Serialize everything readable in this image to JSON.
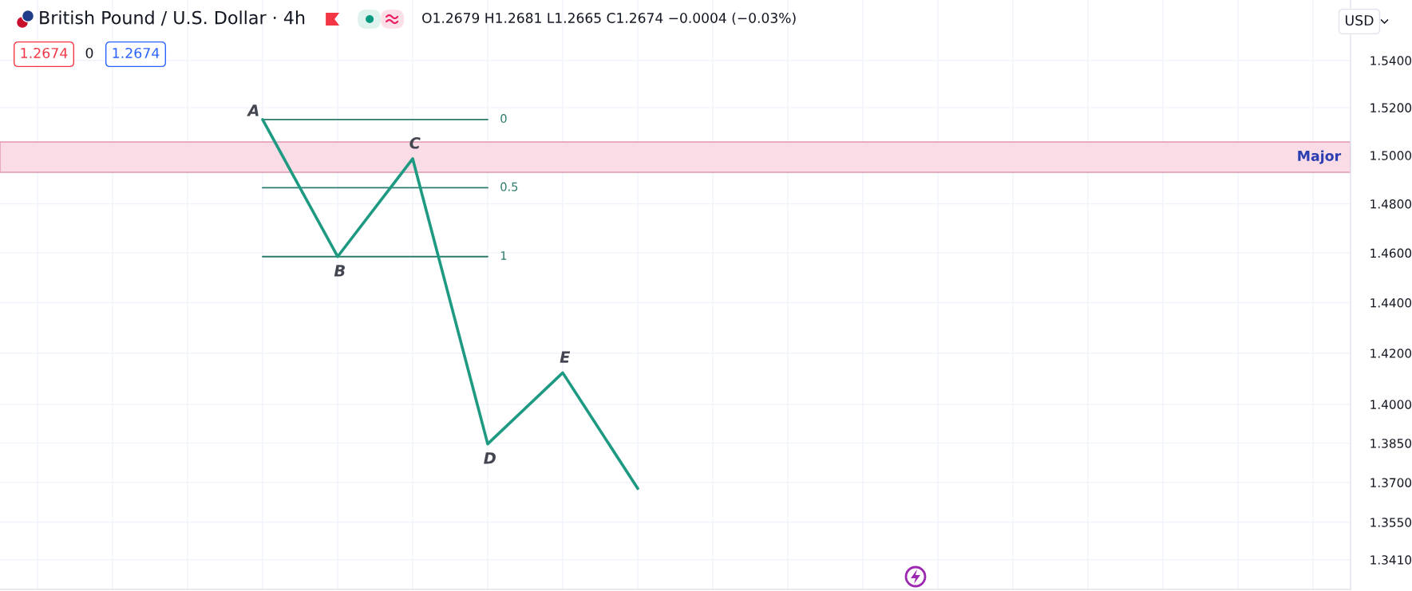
{
  "chart_data": {
    "type": "line",
    "title": "British Pound / U.S. Dollar · 4h",
    "subtitle": "O1.2679 H1.2681 L1.2665 C1.2674 −0.0004 (−0.03%)",
    "annotations": [
      "1.2674",
      "0",
      "1.2674",
      "USD",
      "A",
      "B",
      "C",
      "D",
      "E"
    ],
    "categories": [
      null,
      null,
      null,
      null,
      null,
      null,
      null,
      null,
      null,
      null,
      null,
      null,
      null,
      null,
      null,
      null,
      null,
      null
    ],
    "series": [
      {
        "color": "#1f9a82",
        "values": [
          null,
          null,
          null,
          1.515,
          1.4585,
          1.4986,
          1.3847,
          1.4123,
          1.3677,
          null,
          null,
          null,
          null,
          null,
          null,
          null,
          null,
          null
        ]
      },
      {
        "name": "0",
        "color": "#2b7a6b",
        "values": [
          null,
          null,
          null,
          1.515,
          1.515,
          1.515,
          1.515,
          null,
          null,
          null,
          null,
          null,
          null,
          null,
          null,
          null,
          null,
          null
        ]
      },
      {
        "name": "0.5",
        "color": "#2b7a6b",
        "values": [
          null,
          null,
          null,
          1.4866,
          1.4866,
          1.4866,
          1.4866,
          null,
          null,
          null,
          null,
          null,
          null,
          null,
          null,
          null,
          null,
          null
        ]
      },
      {
        "name": "1",
        "color": "#2b7a6b",
        "values": [
          null,
          null,
          null,
          1.4585,
          1.4585,
          1.4585,
          1.4585,
          null,
          null,
          null,
          null,
          null,
          null,
          null,
          null,
          null,
          null,
          null
        ]
      }
    ],
    "bands": [
      {
        "axis": "y",
        "from": 1.493,
        "to": 1.5056,
        "label": "Major",
        "color": "#f9dce5"
      }
    ],
    "ylim": [
      1.33,
      1.566
    ],
    "yticks": [
      {
        "value": 1.54,
        "label": "1.5400"
      },
      {
        "value": 1.52,
        "label": "1.5200"
      },
      {
        "value": 1.5,
        "label": "1.5000"
      },
      {
        "value": 1.48,
        "label": "1.4800"
      },
      {
        "value": 1.46,
        "label": "1.4600"
      },
      {
        "value": 1.44,
        "label": "1.4400"
      },
      {
        "value": 1.42,
        "label": "1.4200"
      },
      {
        "value": 1.4,
        "label": "1.4000"
      },
      {
        "value": 1.385,
        "label": "1.3850"
      },
      {
        "value": 1.37,
        "label": "1.3700"
      },
      {
        "value": 1.355,
        "label": "1.3550"
      },
      {
        "value": 1.341,
        "label": "1.3410"
      }
    ],
    "log": true,
    "grid": true,
    "tick_labels": "y"
  }
}
